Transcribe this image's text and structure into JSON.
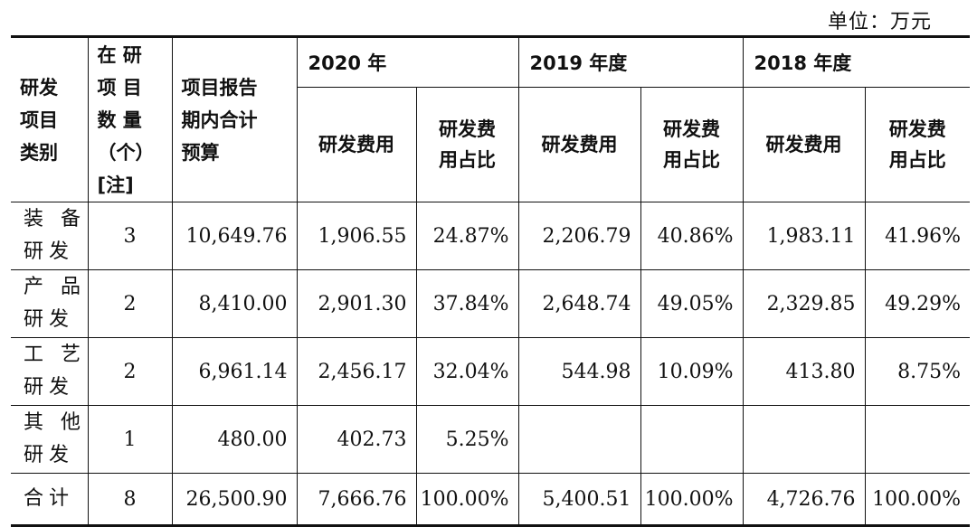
{
  "unit_label": "单位：万元",
  "header": {
    "category": "研发\n项目\n类别",
    "count": "在 研\n项 目\n数 量\n（个）\n[注]",
    "budget": "项目报告\n期内合计\n预算",
    "years": [
      "2020 年",
      "2019 年度",
      "2018 年度"
    ],
    "expense": "研发费用",
    "ratio": "研发费\n用占比"
  },
  "rows": [
    {
      "category": "装 备\n研发",
      "count": "3",
      "budget": "10,649.76",
      "e2020": "1,906.55",
      "r2020": "24.87%",
      "e2019": "2,206.79",
      "r2019": "40.86%",
      "e2018": "1,983.11",
      "r2018": "41.96%"
    },
    {
      "category": "产 品\n研发",
      "count": "2",
      "budget": "8,410.00",
      "e2020": "2,901.30",
      "r2020": "37.84%",
      "e2019": "2,648.74",
      "r2019": "49.05%",
      "e2018": "2,329.85",
      "r2018": "49.29%"
    },
    {
      "category": "工 艺\n研发",
      "count": "2",
      "budget": "6,961.14",
      "e2020": "2,456.17",
      "r2020": "32.04%",
      "e2019": "544.98",
      "r2019": "10.09%",
      "e2018": "413.80",
      "r2018": "8.75%"
    },
    {
      "category": "其 他\n研发",
      "count": "1",
      "budget": "480.00",
      "e2020": "402.73",
      "r2020": "5.25%",
      "e2019": "",
      "r2019": "",
      "e2018": "",
      "r2018": ""
    }
  ],
  "total": {
    "category": "合计",
    "count": "8",
    "budget": "26,500.90",
    "e2020": "7,666.76",
    "r2020": "100.00%",
    "e2019": "5,400.51",
    "r2019": "100.00%",
    "e2018": "4,726.76",
    "r2018": "100.00%"
  }
}
